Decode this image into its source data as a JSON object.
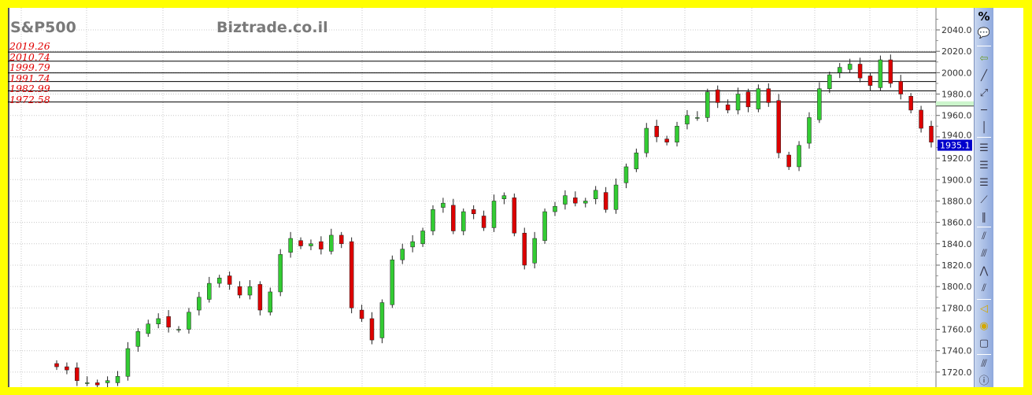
{
  "header": {
    "symbol": "S&P500",
    "brand": "Biztrade.co.il"
  },
  "chart_data": {
    "type": "candlestick",
    "title": "S&P500",
    "ylim": [
      1710,
      2050
    ],
    "yticks": [
      1720,
      1740,
      1760,
      1780,
      1800,
      1820,
      1840,
      1860,
      1880,
      1900,
      1920,
      1940,
      1960,
      1980,
      2000,
      2020,
      2040
    ],
    "ytick_labels": [
      "1720.0",
      "1740.0",
      "1760.0",
      "1780.0",
      "1800.0",
      "1820.0",
      "1840.0",
      "1860.0",
      "1880.0",
      "1900.0",
      "1920.0",
      "1940.0",
      "1960.0",
      "1980.0",
      "2000.0",
      "2020.0",
      "2040.0"
    ],
    "grid": true,
    "closes": [
      1725,
      1722,
      1712,
      1710,
      1708,
      1712,
      1716,
      1742,
      1758,
      1765,
      1770,
      1762,
      1760,
      1776,
      1790,
      1803,
      1808,
      1802,
      1792,
      1800,
      1778,
      1795,
      1830,
      1845,
      1838,
      1840,
      1835,
      1848,
      1840,
      1780,
      1770,
      1750,
      1785,
      1825,
      1835,
      1842,
      1852,
      1872,
      1878,
      1852,
      1870,
      1868,
      1855,
      1880,
      1885,
      1850,
      1820,
      1845,
      1870,
      1875,
      1885,
      1878,
      1880,
      1890,
      1872,
      1895,
      1912,
      1925,
      1948,
      1940,
      1935,
      1950,
      1960,
      1958,
      1982,
      1972,
      1965,
      1980,
      1968,
      1985,
      1972,
      1925,
      1912,
      1932,
      1958,
      1985,
      1998,
      2005,
      2008,
      1995,
      1988,
      2012,
      1990,
      1980,
      1965,
      1948,
      1935
    ],
    "levels": [
      {
        "value": 2019.26,
        "label": "2019.26"
      },
      {
        "value": 2010.74,
        "label": "2010.74"
      },
      {
        "value": 1999.79,
        "label": "1999.79"
      },
      {
        "value": 1991.74,
        "label": "1991.74"
      },
      {
        "value": 1982.99,
        "label": "1982.99"
      },
      {
        "value": 1972.58,
        "label": "1972.58"
      }
    ],
    "last_price": {
      "value": 1935.1,
      "label": "1935.1"
    },
    "colors": {
      "up": "#33cc33",
      "down": "#dd0000",
      "last_price_bg": "#0000cc",
      "level_label": "#e00000",
      "frame": "#ffff00"
    }
  },
  "toolbar": {
    "items": [
      {
        "icon": "percent-icon",
        "glyph": "%"
      },
      {
        "icon": "comment-icon",
        "glyph": "💬"
      },
      {
        "icon": "back-arrow-icon",
        "glyph": "⇦"
      },
      {
        "icon": "trendline-icon",
        "glyph": "╱"
      },
      {
        "icon": "ray-line-icon",
        "glyph": "⤢"
      },
      {
        "icon": "horizontal-line-icon",
        "glyph": "─"
      },
      {
        "icon": "vertical-line-icon",
        "glyph": "│"
      },
      {
        "icon": "fib-retracement-icon",
        "glyph": "☰"
      },
      {
        "icon": "pivot-icon",
        "glyph": "☰"
      },
      {
        "icon": "fib-extension-icon",
        "glyph": "☰"
      },
      {
        "icon": "fib-fan-icon",
        "glyph": "⟋"
      },
      {
        "icon": "fib-time-icon",
        "glyph": "∥"
      },
      {
        "icon": "channel-icon",
        "glyph": "⫽"
      },
      {
        "icon": "parallel-lines-icon",
        "glyph": "⫻"
      },
      {
        "icon": "andrews-pitchfork-icon",
        "glyph": "⋀"
      },
      {
        "icon": "channel-2-icon",
        "glyph": "⫽"
      },
      {
        "icon": "triangle-icon",
        "glyph": "◁"
      },
      {
        "icon": "circle-icon",
        "glyph": "◉"
      },
      {
        "icon": "rectangle-icon",
        "glyph": "▢"
      },
      {
        "icon": "gann-icon",
        "glyph": "⫻"
      },
      {
        "icon": "info-icon",
        "glyph": "ⓘ"
      }
    ]
  }
}
